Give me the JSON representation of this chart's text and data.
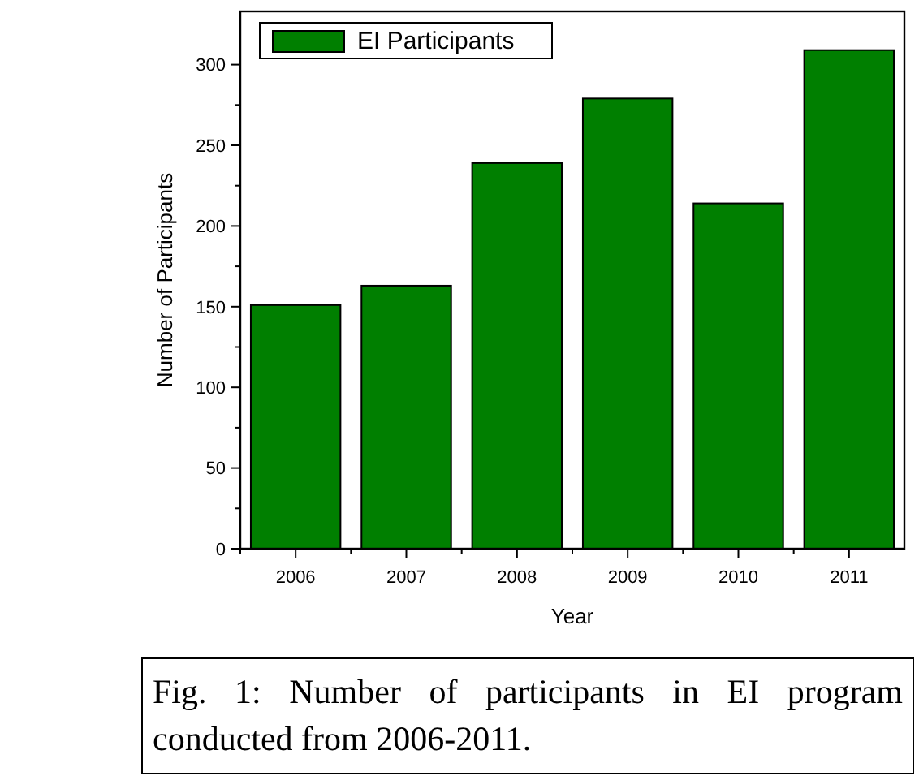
{
  "chart_data": {
    "type": "bar",
    "xlabel": "Year",
    "ylabel": "Number of Participants",
    "categories": [
      "2006",
      "2007",
      "2008",
      "2009",
      "2010",
      "2011"
    ],
    "series": [
      {
        "name": "EI Participants",
        "color": "#007f00",
        "values": [
          151,
          163,
          239,
          279,
          214,
          309
        ]
      }
    ],
    "ylim": [
      0,
      333
    ],
    "yticks": [
      0,
      50,
      100,
      150,
      200,
      250,
      300
    ],
    "legend": "top left",
    "grid": false,
    "annotations": [
      "Fig. 1: Number of participants in EI program conducted from 2006-2011."
    ]
  }
}
